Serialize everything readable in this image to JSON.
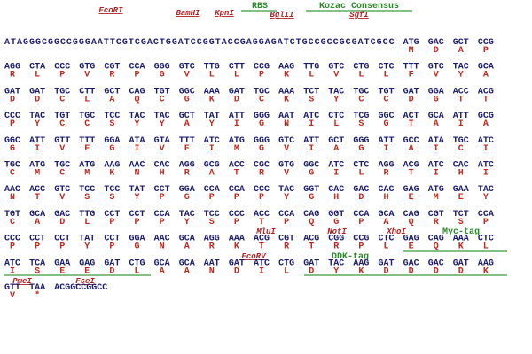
{
  "rows": [
    {
      "prefix": "ATAGGGCGGCCGGGAATTCGTCGACTGGATCCGGTACCGAGGAGATCTGCCGCCGCGATCGCC",
      "codons": [
        "ATG",
        "GAC",
        "GCT",
        "CCG"
      ],
      "aa": [
        "M",
        "D",
        "A",
        "P"
      ]
    },
    {
      "codons": [
        "AGG",
        "CTA",
        "CCC",
        "GTG",
        "CGT",
        "CCA",
        "GGG",
        "GTC",
        "TTG",
        "CTT",
        "CCG",
        "AAG",
        "TTG",
        "GTC",
        "CTG",
        "CTC",
        "TTT",
        "GTC",
        "TAC",
        "GCA"
      ],
      "aa": [
        "R",
        "L",
        "P",
        "V",
        "R",
        "P",
        "G",
        "V",
        "L",
        "L",
        "P",
        "K",
        "L",
        "V",
        "L",
        "L",
        "F",
        "V",
        "Y",
        "A"
      ]
    },
    {
      "codons": [
        "GAT",
        "GAT",
        "TGC",
        "CTT",
        "GCT",
        "CAG",
        "TGT",
        "GGC",
        "AAA",
        "GAT",
        "TGC",
        "AAA",
        "TCT",
        "TAC",
        "TGC",
        "TGT",
        "GAT",
        "GGA",
        "ACC",
        "ACG"
      ],
      "aa": [
        "D",
        "D",
        "C",
        "L",
        "A",
        "Q",
        "C",
        "G",
        "K",
        "D",
        "C",
        "K",
        "S",
        "Y",
        "C",
        "C",
        "D",
        "G",
        "T",
        "T"
      ]
    },
    {
      "codons": [
        "CCC",
        "TAC",
        "TGT",
        "TGC",
        "TCC",
        "TAC",
        "TAC",
        "GCT",
        "TAT",
        "ATT",
        "GGG",
        "AAT",
        "ATC",
        "CTC",
        "TCG",
        "GGC",
        "ACT",
        "GCA",
        "ATT",
        "GCG"
      ],
      "aa": [
        "P",
        "Y",
        "C",
        "C",
        "S",
        "Y",
        "Y",
        "A",
        "Y",
        "I",
        "G",
        "N",
        "I",
        "L",
        "S",
        "G",
        "T",
        "A",
        "I",
        "A"
      ]
    },
    {
      "codons": [
        "GGC",
        "ATT",
        "GTT",
        "TTT",
        "GGA",
        "ATA",
        "GTA",
        "TTT",
        "ATC",
        "ATG",
        "GGG",
        "GTC",
        "ATT",
        "GCT",
        "GGG",
        "ATT",
        "GCC",
        "ATA",
        "TGC",
        "ATC"
      ],
      "aa": [
        "G",
        "I",
        "V",
        "F",
        "G",
        "I",
        "V",
        "F",
        "I",
        "M",
        "G",
        "V",
        "I",
        "A",
        "G",
        "I",
        "A",
        "I",
        "C",
        "I"
      ]
    },
    {
      "codons": [
        "TGC",
        "ATG",
        "TGC",
        "ATG",
        "AAG",
        "AAC",
        "CAC",
        "AGG",
        "GCG",
        "ACC",
        "CGC",
        "GTG",
        "GGC",
        "ATC",
        "CTC",
        "AGG",
        "ACG",
        "ATC",
        "CAC",
        "ATC"
      ],
      "aa": [
        "C",
        "M",
        "C",
        "M",
        "K",
        "N",
        "H",
        "R",
        "A",
        "T",
        "R",
        "V",
        "G",
        "I",
        "L",
        "R",
        "T",
        "I",
        "H",
        "I"
      ]
    },
    {
      "codons": [
        "AAC",
        "ACC",
        "GTC",
        "TCC",
        "TCC",
        "TAT",
        "CCT",
        "GGA",
        "CCA",
        "CCA",
        "CCC",
        "TAC",
        "GGT",
        "CAC",
        "GAC",
        "CAC",
        "GAG",
        "ATG",
        "GAA",
        "TAC"
      ],
      "aa": [
        "N",
        "T",
        "V",
        "S",
        "S",
        "Y",
        "P",
        "G",
        "P",
        "P",
        "P",
        "Y",
        "G",
        "H",
        "D",
        "H",
        "E",
        "M",
        "E",
        "Y"
      ]
    },
    {
      "codons": [
        "TGT",
        "GCA",
        "GAC",
        "TTG",
        "CCT",
        "CCT",
        "CCA",
        "TAC",
        "TCC",
        "CCC",
        "ACC",
        "CCA",
        "CAG",
        "GGT",
        "CCA",
        "GCA",
        "CAG",
        "CGT",
        "TCT",
        "CCA"
      ],
      "aa": [
        "C",
        "A",
        "D",
        "L",
        "P",
        "P",
        "P",
        "Y",
        "S",
        "P",
        "T",
        "P",
        "Q",
        "G",
        "P",
        "A",
        "Q",
        "R",
        "S",
        "P"
      ]
    },
    {
      "codons": [
        "CCC",
        "CCT",
        "CCT",
        "TAT",
        "CCT",
        "GGA",
        "AAC",
        "GCA",
        "AGG",
        "AAA",
        "ACG",
        "CGT",
        "ACG",
        "CGG",
        "CCG",
        "CTC",
        "GAG",
        "CAG",
        "AAA",
        "CTC"
      ],
      "aa": [
        "P",
        "P",
        "P",
        "Y",
        "P",
        "G",
        "N",
        "A",
        "R",
        "K",
        "T",
        "R",
        "T",
        "R",
        "P",
        "L",
        "E",
        "Q",
        "K",
        "L"
      ]
    },
    {
      "codons": [
        "ATC",
        "TCA",
        "GAA",
        "GAG",
        "GAT",
        "CTG",
        "GCA",
        "GCA",
        "AAT",
        "GAT",
        "ATC",
        "CTG",
        "GAT",
        "TAC",
        "AAG",
        "GAT",
        "GAC",
        "GAC",
        "GAT",
        "AAG"
      ],
      "aa": [
        "I",
        "S",
        "E",
        "E",
        "D",
        "L",
        "A",
        "A",
        "N",
        "D",
        "I",
        "L",
        "D",
        "Y",
        "K",
        "D",
        "D",
        "D",
        "D",
        "K"
      ]
    },
    {
      "codons": [
        "GTT",
        "TAA"
      ],
      "aa": [
        "V",
        "*"
      ],
      "suffix": "ACGGCCGGCC"
    }
  ],
  "sites": [
    "EcoRI",
    "BamHI",
    "KpnI",
    "BglII",
    "SgfI",
    "MluI",
    "NotI",
    "XhoI",
    "EcoRV",
    "PmeI",
    "FseI"
  ],
  "features": [
    "RBS",
    "Kozac Consensus",
    "Myc-tag",
    "DDK-tag"
  ]
}
